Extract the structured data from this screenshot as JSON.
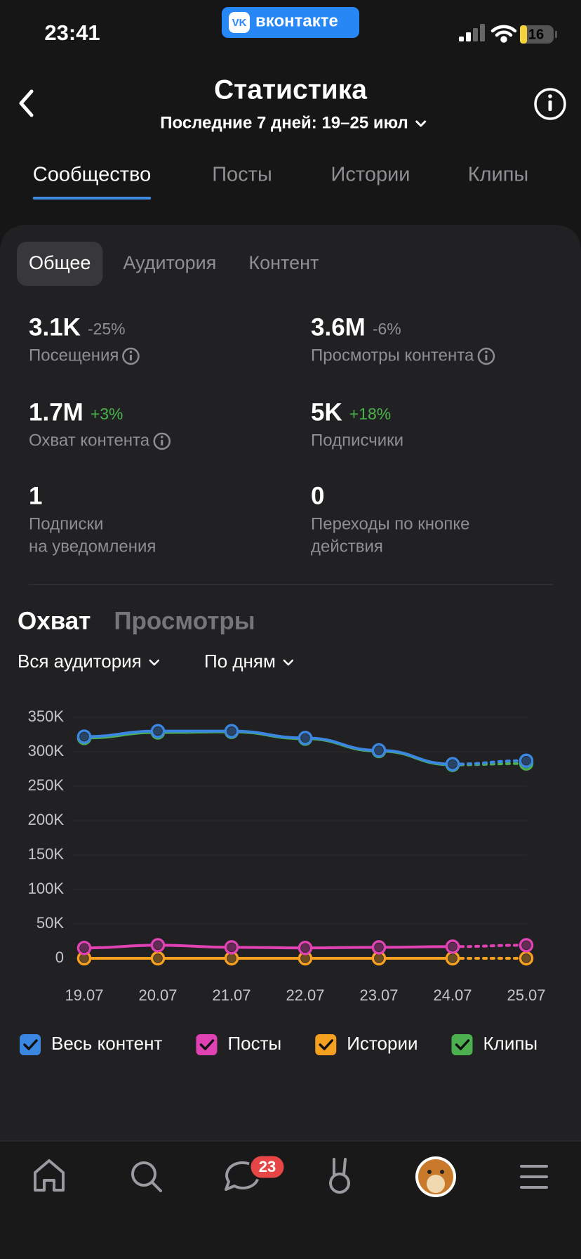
{
  "status_bar": {
    "time": "23:41",
    "battery": 16
  },
  "app_badge": "вконтакте",
  "header": {
    "title": "Статистика",
    "subtitle": "Последние 7 дней: 19–25 июл"
  },
  "tabs": [
    "Сообщество",
    "Посты",
    "Истории",
    "Клипы"
  ],
  "active_tab": 0,
  "subtabs": [
    "Общее",
    "Аудитория",
    "Контент"
  ],
  "active_subtab": 0,
  "stats": [
    {
      "value": "3.1K",
      "change": "-25%",
      "label": [
        "Посещения"
      ],
      "info": true
    },
    {
      "value": "3.6M",
      "change": "-6%",
      "label": [
        "Просмотры контента"
      ],
      "info": true
    },
    {
      "value": "1.7M",
      "change": "+3%",
      "label": [
        "Охват контента"
      ],
      "info": true
    },
    {
      "value": "5K",
      "change": "+18%",
      "label": [
        "Подписчики"
      ],
      "info": false
    },
    {
      "value": "1",
      "label": [
        "Подписки",
        "на уведомления"
      ],
      "info": false
    },
    {
      "value": "0",
      "label": [
        "Переходы по кнопке",
        "действия"
      ],
      "info": false
    }
  ],
  "section_tabs": [
    "Охват",
    "Просмотры"
  ],
  "active_section": 0,
  "filters": [
    "Вся аудитория",
    "По дням"
  ],
  "chart_data": {
    "type": "line",
    "categories": [
      "19.07",
      "20.07",
      "21.07",
      "22.07",
      "23.07",
      "24.07",
      "25.07"
    ],
    "series": [
      {
        "name": "Весь контент",
        "color": "#3a86e0",
        "values": [
          322000,
          330000,
          330000,
          320000,
          302000,
          282000,
          287000
        ]
      },
      {
        "name": "Посты",
        "color": "#e042b4",
        "values": [
          15000,
          19000,
          16000,
          15000,
          16000,
          17000,
          19000
        ]
      },
      {
        "name": "Истории",
        "color": "#f5a020",
        "values": [
          0,
          0,
          0,
          0,
          0,
          0,
          0
        ]
      },
      {
        "name": "Клипы",
        "color": "#4caf50",
        "values": [
          320000,
          328000,
          329000,
          319000,
          301000,
          281000,
          283000
        ]
      }
    ],
    "ylim": [
      0,
      350000
    ],
    "yticks": [
      0,
      {
        "value": 50000,
        "label": "50K"
      },
      {
        "value": 100000,
        "label": "100K"
      },
      {
        "value": 150000,
        "label": "150K"
      },
      {
        "value": 200000,
        "label": "200K"
      },
      {
        "value": 250000,
        "label": "250K"
      },
      {
        "value": 300000,
        "label": "300K"
      },
      {
        "value": 350000,
        "label": "350K"
      }
    ],
    "grid": true,
    "last_segment_dashed": true
  },
  "nav": {
    "messages_badge": 23
  }
}
